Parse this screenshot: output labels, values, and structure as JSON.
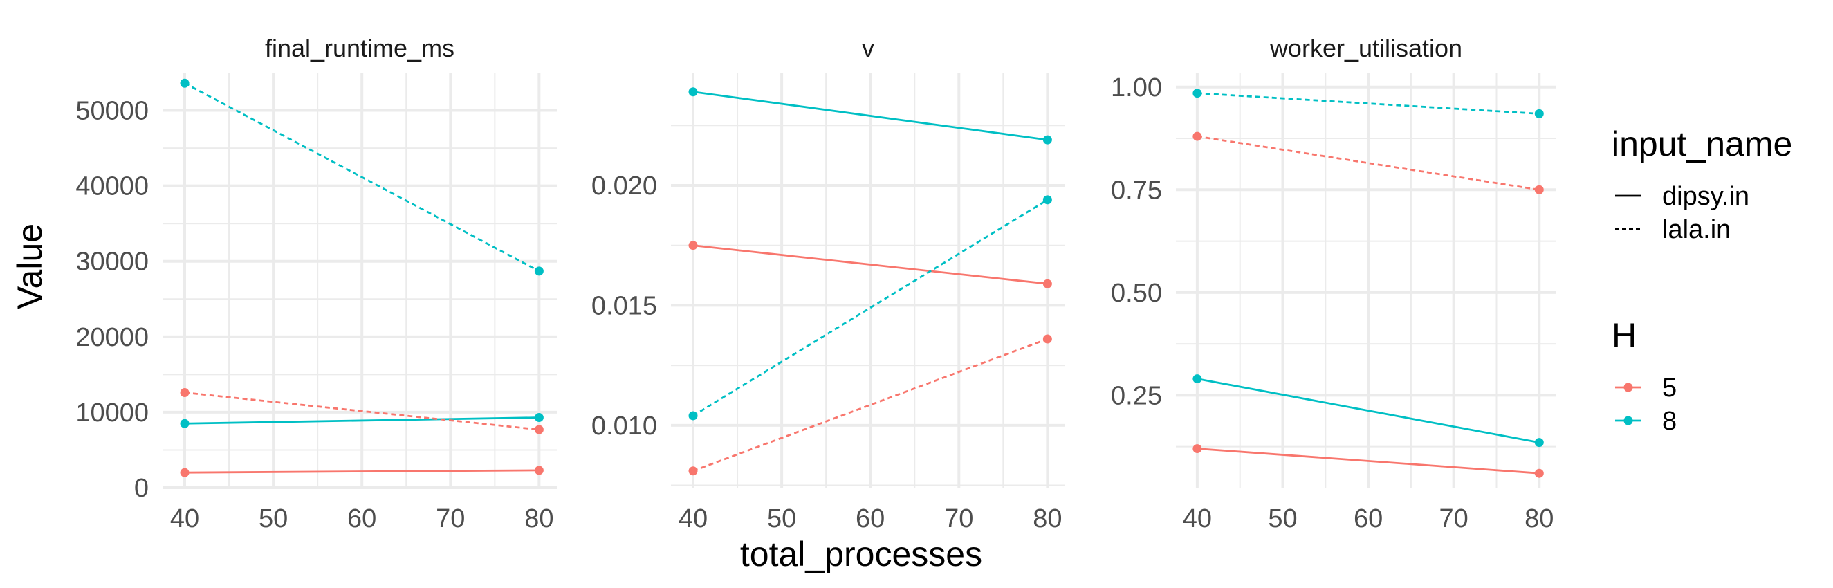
{
  "chart_data": {
    "type": "line",
    "xlabel": "total_processes",
    "ylabel": "Value",
    "x": [
      40,
      80
    ],
    "x_ticks": [
      40,
      50,
      60,
      70,
      80
    ],
    "colors": {
      "5": "#F8766D",
      "8": "#00BFC4"
    },
    "linetypes": {
      "dipsy.in": "solid",
      "lala.in": "dashed"
    },
    "legend": {
      "position": "right",
      "linetype_title": "input_name",
      "linetype_entries": [
        "dipsy.in",
        "lala.in"
      ],
      "color_title": "H",
      "color_entries": [
        "5",
        "8"
      ]
    },
    "panels": [
      {
        "title": "final_runtime_ms",
        "ylim": [
          0,
          55000
        ],
        "y_ticks": [
          0,
          10000,
          20000,
          30000,
          40000,
          50000
        ],
        "y_tick_labels": [
          "0",
          "10000",
          "20000",
          "30000",
          "40000",
          "50000"
        ],
        "series": [
          {
            "H": "5",
            "input_name": "dipsy.in",
            "values": [
              2000,
              2300
            ]
          },
          {
            "H": "8",
            "input_name": "dipsy.in",
            "values": [
              8500,
              9300
            ]
          },
          {
            "H": "5",
            "input_name": "lala.in",
            "values": [
              12600,
              7700
            ]
          },
          {
            "H": "8",
            "input_name": "lala.in",
            "values": [
              53600,
              28700
            ]
          }
        ]
      },
      {
        "title": "v",
        "ylim": [
          0.0074,
          0.0247
        ],
        "y_ticks": [
          0.01,
          0.015,
          0.02
        ],
        "y_tick_labels": [
          "0.010",
          "0.015",
          "0.020"
        ],
        "series": [
          {
            "H": "5",
            "input_name": "dipsy.in",
            "values": [
              0.0175,
              0.0159
            ]
          },
          {
            "H": "8",
            "input_name": "dipsy.in",
            "values": [
              0.0239,
              0.0219
            ]
          },
          {
            "H": "5",
            "input_name": "lala.in",
            "values": [
              0.0081,
              0.0136
            ]
          },
          {
            "H": "8",
            "input_name": "lala.in",
            "values": [
              0.0104,
              0.0194
            ]
          }
        ]
      },
      {
        "title": "worker_utilisation",
        "ylim": [
          0.025,
          1.035
        ],
        "y_ticks": [
          0.25,
          0.5,
          0.75,
          1.0
        ],
        "y_tick_labels": [
          "0.25",
          "0.50",
          "0.75",
          "1.00"
        ],
        "series": [
          {
            "H": "5",
            "input_name": "dipsy.in",
            "values": [
              0.12,
              0.06
            ]
          },
          {
            "H": "8",
            "input_name": "dipsy.in",
            "values": [
              0.29,
              0.135
            ]
          },
          {
            "H": "5",
            "input_name": "lala.in",
            "values": [
              0.88,
              0.75
            ]
          },
          {
            "H": "8",
            "input_name": "lala.in",
            "values": [
              0.985,
              0.935
            ]
          }
        ]
      }
    ]
  }
}
